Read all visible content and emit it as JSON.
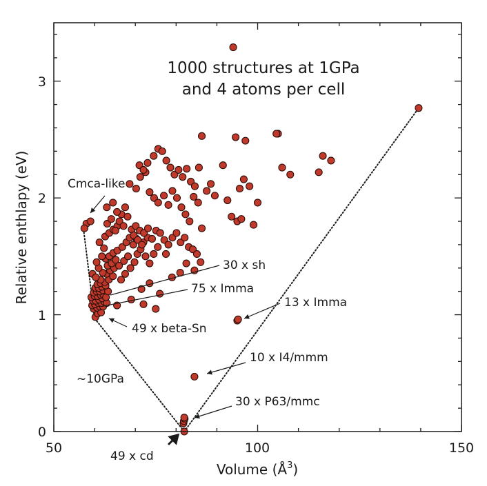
{
  "chart_data": {
    "type": "scatter",
    "title_lines": [
      "1000 structures at 1GPa",
      "and 4 atoms per cell"
    ],
    "xlabel_main": "Volume (Å",
    "xlabel_sup": "3",
    "xlabel_close": ")",
    "ylabel": "Relative enthlapy (eV)",
    "xlim": [
      50,
      150
    ],
    "ylim": [
      0,
      3.5
    ],
    "x_ticks": [
      50,
      100,
      150
    ],
    "y_ticks": [
      0,
      1,
      2,
      3
    ],
    "marker_color": "#c0392b",
    "marker_edge": "#2b0f0a",
    "annotations": [
      {
        "id": "cmca",
        "text": "Cmca-like"
      },
      {
        "id": "sh",
        "text": "30 x sh"
      },
      {
        "id": "imma75",
        "text": "75 x Imma"
      },
      {
        "id": "betasn",
        "text": "49 x beta-Sn"
      },
      {
        "id": "imma13",
        "text": "13 x Imma"
      },
      {
        "id": "i4mmm",
        "text": "10 x I4/mmm"
      },
      {
        "id": "gpa",
        "text": "~10GPa"
      },
      {
        "id": "p63",
        "text": "30 x P63/mmc"
      },
      {
        "id": "cd",
        "text": "49 x cd"
      }
    ],
    "hull_left": [
      [
        57.3,
        1.73
      ],
      [
        60.0,
        0.97
      ],
      [
        82.0,
        0.0
      ]
    ],
    "hull_right": [
      [
        82.0,
        0.0
      ],
      [
        139.5,
        2.77
      ]
    ],
    "points": [
      [
        82.0,
        0.0
      ],
      [
        81.8,
        0.07
      ],
      [
        81.9,
        0.09
      ],
      [
        82.1,
        0.11
      ],
      [
        82.0,
        0.12
      ],
      [
        84.5,
        0.47
      ],
      [
        95.0,
        0.95
      ],
      [
        95.2,
        0.96
      ],
      [
        94.0,
        3.29
      ],
      [
        139.5,
        2.77
      ],
      [
        60.2,
        0.98
      ],
      [
        60.8,
        1.01
      ],
      [
        61.6,
        1.02
      ],
      [
        59.8,
        1.05
      ],
      [
        60.6,
        1.06
      ],
      [
        61.3,
        1.07
      ],
      [
        62.1,
        1.07
      ],
      [
        59.4,
        1.08
      ],
      [
        60.1,
        1.09
      ],
      [
        60.9,
        1.1
      ],
      [
        61.7,
        1.1
      ],
      [
        62.4,
        1.11
      ],
      [
        59.6,
        1.12
      ],
      [
        60.3,
        1.12
      ],
      [
        61.1,
        1.13
      ],
      [
        61.9,
        1.14
      ],
      [
        59.2,
        1.15
      ],
      [
        60.0,
        1.16
      ],
      [
        60.7,
        1.16
      ],
      [
        61.5,
        1.17
      ],
      [
        62.2,
        1.17
      ],
      [
        59.8,
        1.19
      ],
      [
        60.5,
        1.2
      ],
      [
        61.3,
        1.2
      ],
      [
        62.0,
        1.21
      ],
      [
        60.2,
        1.23
      ],
      [
        61.0,
        1.23
      ],
      [
        61.8,
        1.24
      ],
      [
        60.7,
        1.26
      ],
      [
        61.5,
        1.27
      ],
      [
        63.0,
        1.1
      ],
      [
        62.8,
        1.15
      ],
      [
        63.3,
        1.2
      ],
      [
        62.7,
        1.25
      ],
      [
        62.5,
        1.28
      ],
      [
        63.5,
        1.3
      ],
      [
        64.5,
        1.33
      ],
      [
        62.9,
        1.35
      ],
      [
        63.8,
        1.38
      ],
      [
        64.8,
        1.4
      ],
      [
        63.2,
        1.42
      ],
      [
        64.2,
        1.44
      ],
      [
        65.2,
        1.47
      ],
      [
        62.7,
        1.48
      ],
      [
        63.6,
        1.5
      ],
      [
        64.6,
        1.53
      ],
      [
        65.6,
        1.55
      ],
      [
        66.5,
        1.3
      ],
      [
        67.5,
        1.35
      ],
      [
        66.0,
        1.42
      ],
      [
        67.2,
        1.46
      ],
      [
        68.2,
        1.5
      ],
      [
        66.8,
        1.58
      ],
      [
        67.8,
        1.62
      ],
      [
        68.8,
        1.4
      ],
      [
        69.8,
        1.45
      ],
      [
        70.5,
        1.52
      ],
      [
        71.3,
        1.56
      ],
      [
        69.5,
        1.6
      ],
      [
        70.3,
        1.65
      ],
      [
        72.5,
        1.5
      ],
      [
        73.5,
        1.44
      ],
      [
        74.5,
        1.52
      ],
      [
        72.0,
        1.62
      ],
      [
        73.0,
        1.66
      ],
      [
        75.5,
        1.58
      ],
      [
        61.5,
        1.3
      ],
      [
        62.0,
        1.36
      ],
      [
        61.0,
        1.4
      ],
      [
        60.5,
        1.45
      ],
      [
        61.8,
        1.5
      ],
      [
        62.3,
        1.57
      ],
      [
        61.2,
        1.62
      ],
      [
        62.6,
        1.67
      ],
      [
        63.6,
        1.7
      ],
      [
        64.6,
        1.73
      ],
      [
        65.6,
        1.76
      ],
      [
        63.1,
        1.78
      ],
      [
        64.1,
        1.82
      ],
      [
        65.1,
        1.72
      ],
      [
        66.1,
        1.8
      ],
      [
        67.1,
        1.76
      ],
      [
        66.6,
        1.86
      ],
      [
        68.1,
        1.84
      ],
      [
        69.1,
        1.73
      ],
      [
        70.1,
        1.76
      ],
      [
        71.1,
        1.72
      ],
      [
        72.1,
        1.7
      ],
      [
        73.1,
        1.74
      ],
      [
        68.6,
        1.66
      ],
      [
        69.6,
        1.68
      ],
      [
        70.6,
        1.64
      ],
      [
        71.6,
        1.6
      ],
      [
        74.1,
        1.65
      ],
      [
        75.1,
        1.72
      ],
      [
        76.1,
        1.7
      ],
      [
        77.1,
        1.64
      ],
      [
        78.1,
        1.6
      ],
      [
        79.1,
        1.66
      ],
      [
        80.1,
        1.7
      ],
      [
        81.1,
        1.62
      ],
      [
        82.1,
        1.66
      ],
      [
        83.1,
        1.58
      ],
      [
        84.1,
        1.56
      ],
      [
        85.1,
        1.52
      ],
      [
        86.0,
        1.45
      ],
      [
        58.0,
        1.78
      ],
      [
        59.0,
        1.8
      ],
      [
        57.5,
        1.74
      ],
      [
        59.5,
        1.35
      ],
      [
        60.3,
        1.32
      ],
      [
        63.0,
        1.92
      ],
      [
        64.5,
        1.96
      ],
      [
        65.5,
        1.88
      ],
      [
        67.5,
        1.92
      ],
      [
        68.6,
        2.12
      ],
      [
        70.2,
        2.08
      ],
      [
        71.2,
        2.18
      ],
      [
        72.5,
        2.22
      ],
      [
        73.5,
        2.05
      ],
      [
        74.6,
        2.0
      ],
      [
        75.6,
        1.96
      ],
      [
        77.0,
        2.02
      ],
      [
        78.1,
        1.94
      ],
      [
        79.1,
        2.06
      ],
      [
        80.2,
        2.0
      ],
      [
        81.3,
        1.92
      ],
      [
        82.3,
        1.86
      ],
      [
        83.3,
        1.8
      ],
      [
        84.3,
        2.01
      ],
      [
        85.4,
        1.96
      ],
      [
        86.3,
        1.74
      ],
      [
        71.0,
        2.28
      ],
      [
        72.0,
        2.24
      ],
      [
        73.0,
        2.3
      ],
      [
        74.5,
        2.36
      ],
      [
        75.6,
        2.42
      ],
      [
        76.6,
        2.4
      ],
      [
        77.6,
        2.32
      ],
      [
        78.6,
        2.26
      ],
      [
        79.6,
        2.2
      ],
      [
        80.6,
        2.24
      ],
      [
        81.6,
        2.18
      ],
      [
        82.6,
        2.25
      ],
      [
        83.6,
        2.14
      ],
      [
        84.6,
        2.1
      ],
      [
        85.6,
        2.26
      ],
      [
        86.3,
        2.53
      ],
      [
        87.5,
        2.06
      ],
      [
        88.5,
        2.12
      ],
      [
        89.5,
        2.02
      ],
      [
        91.5,
        2.28
      ],
      [
        92.6,
        1.98
      ],
      [
        93.6,
        1.84
      ],
      [
        94.6,
        2.52
      ],
      [
        95.6,
        2.08
      ],
      [
        96.6,
        2.16
      ],
      [
        97.0,
        2.49
      ],
      [
        98.0,
        2.1
      ],
      [
        99.0,
        1.77
      ],
      [
        100.0,
        1.96
      ],
      [
        95.0,
        1.8
      ],
      [
        96.0,
        1.82
      ],
      [
        105.0,
        2.55
      ],
      [
        106.0,
        2.26
      ],
      [
        108.0,
        2.2
      ],
      [
        115.0,
        2.22
      ],
      [
        116.0,
        2.36
      ],
      [
        118.0,
        2.32
      ],
      [
        104.6,
        2.55
      ],
      [
        75.0,
        1.05
      ],
      [
        76.0,
        1.18
      ],
      [
        72.0,
        1.09
      ],
      [
        65.5,
        1.08
      ],
      [
        79.0,
        1.32
      ],
      [
        81.0,
        1.36
      ],
      [
        84.5,
        1.38
      ],
      [
        82.5,
        1.44
      ],
      [
        71.5,
        1.22
      ],
      [
        73.5,
        1.27
      ],
      [
        69.0,
        1.13
      ],
      [
        77.5,
        1.52
      ]
    ]
  }
}
